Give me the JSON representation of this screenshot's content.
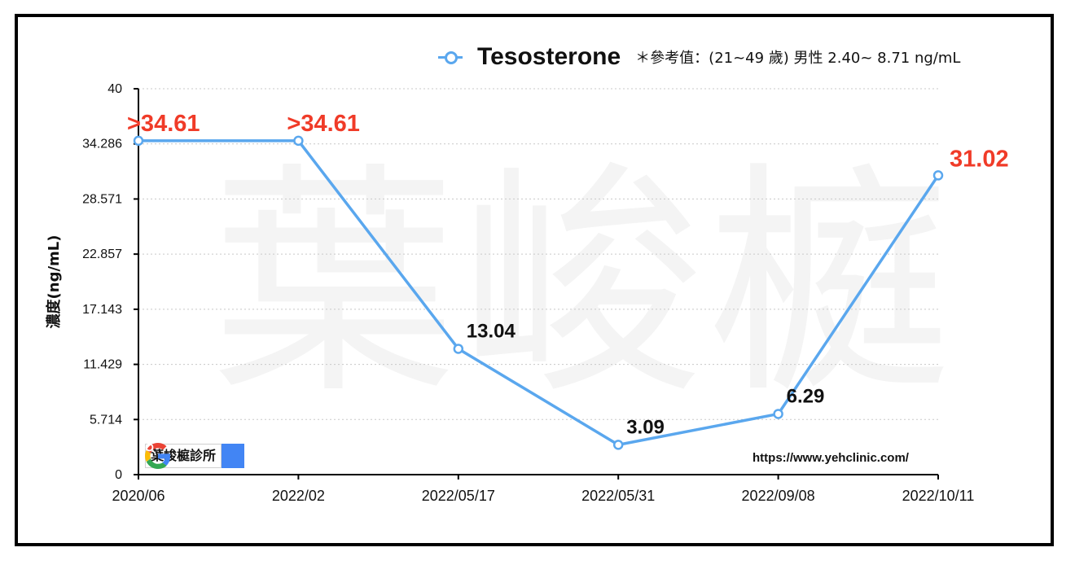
{
  "legend": {
    "series_name": "Tesosterone",
    "reference_text": "＊參考值：(21~49 歲) 男性 2.40~ 8.71 ng/mL"
  },
  "watermark": "葉峻榳",
  "search_box": {
    "text": "葉峻榳診所"
  },
  "url": "https://www.yehclinic.com/",
  "colors": {
    "line": "#5aa7ee",
    "highlight": "#f03b28",
    "normal_label": "#111111"
  },
  "chart_data": {
    "type": "line",
    "title": "",
    "ylabel": "濃度(ng/mL)",
    "xlabel": "",
    "ylim": [
      0,
      40
    ],
    "yticks": [
      "0",
      "5.714",
      "11.429",
      "17.143",
      "22.857",
      "28.571",
      "34.286",
      "40"
    ],
    "grid": true,
    "categories": [
      "2020/06",
      "2022/02",
      "2022/05/17",
      "2022/05/31",
      "2022/09/08",
      "2022/10/11"
    ],
    "series": [
      {
        "name": "Tesosterone",
        "values": [
          34.61,
          34.61,
          13.04,
          3.09,
          6.29,
          31.02
        ],
        "labels": [
          ">34.61",
          ">34.61",
          "13.04",
          "3.09",
          "6.29",
          "31.02"
        ],
        "label_highlight": [
          true,
          true,
          false,
          false,
          false,
          true
        ]
      }
    ]
  }
}
